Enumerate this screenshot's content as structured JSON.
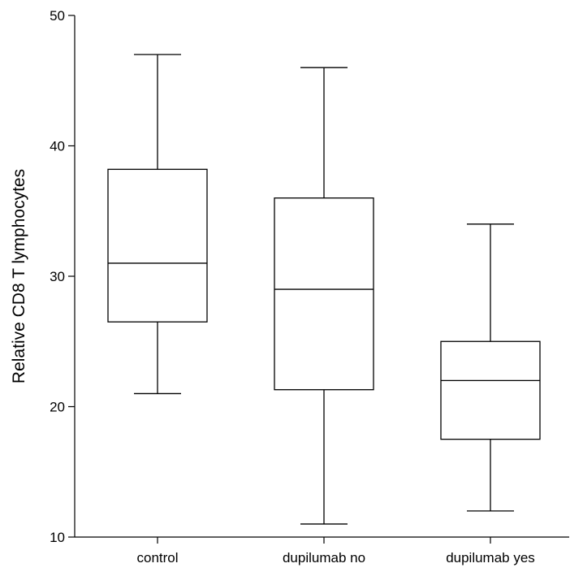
{
  "chart_data": {
    "type": "boxplot",
    "ylabel": "Relative CD8 T lymphocytes",
    "xlabel": "",
    "ylim": [
      10,
      50
    ],
    "yticks": [
      10,
      20,
      30,
      40,
      50
    ],
    "categories": [
      "control",
      "dupilumab no",
      "dupilumab yes"
    ],
    "boxes": [
      {
        "category": "control",
        "min": 21,
        "q1": 26.5,
        "median": 31,
        "q3": 38.2,
        "max": 47
      },
      {
        "category": "dupilumab no",
        "min": 11,
        "q1": 21.3,
        "median": 29,
        "q3": 36,
        "max": 46
      },
      {
        "category": "dupilumab yes",
        "min": 12,
        "q1": 17.5,
        "median": 22,
        "q3": 25,
        "max": 34
      }
    ],
    "grid": false,
    "legend": "none"
  }
}
